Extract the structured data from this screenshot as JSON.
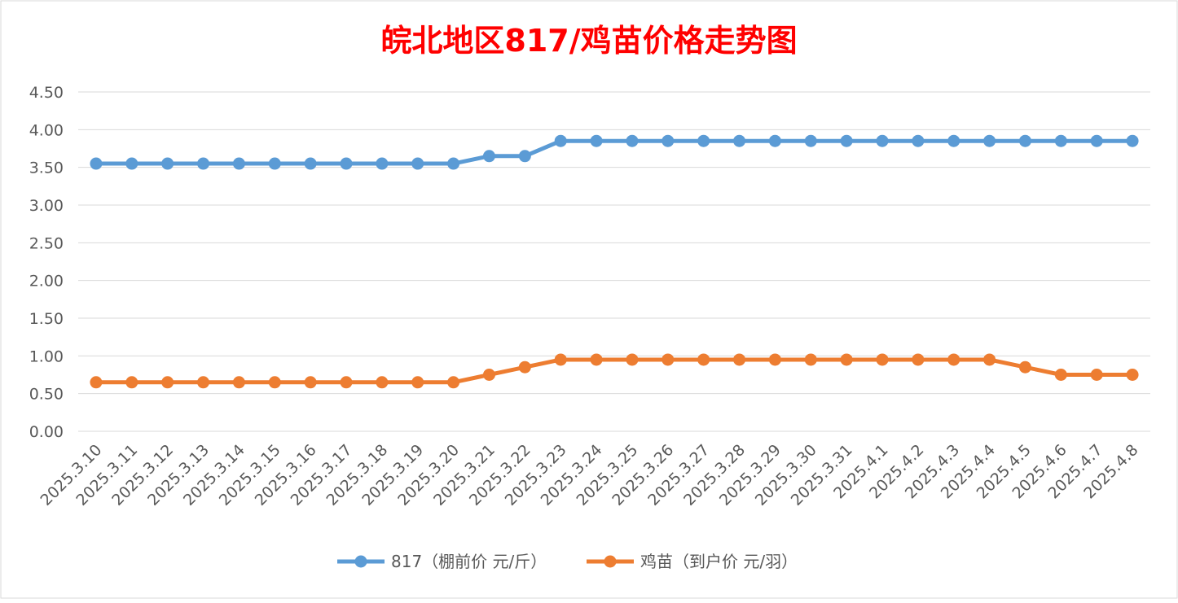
{
  "chart_data": {
    "type": "line",
    "title": "皖北地区817/鸡苗价格走势图",
    "title_color": "#ff0000",
    "categories": [
      "2025.3.10",
      "2025.3.11",
      "2025.3.12",
      "2025.3.13",
      "2025.3.14",
      "2025.3.15",
      "2025.3.16",
      "2025.3.17",
      "2025.3.18",
      "2025.3.19",
      "2025.3.20",
      "2025.3.21",
      "2025.3.22",
      "2025.3.23",
      "2025.3.24",
      "2025.3.25",
      "2025.3.26",
      "2025.3.27",
      "2025.3.28",
      "2025.3.29",
      "2025.3.30",
      "2025.3.31",
      "2025.4.1",
      "2025.4.2",
      "2025.4.3",
      "2025.4.4",
      "2025.4.5",
      "2025.4.6",
      "2025.4.7",
      "2025.4.8"
    ],
    "series": [
      {
        "name": "817（棚前价 元/斤）",
        "color": "#5b9bd5",
        "values": [
          3.55,
          3.55,
          3.55,
          3.55,
          3.55,
          3.55,
          3.55,
          3.55,
          3.55,
          3.55,
          3.55,
          3.65,
          3.65,
          3.85,
          3.85,
          3.85,
          3.85,
          3.85,
          3.85,
          3.85,
          3.85,
          3.85,
          3.85,
          3.85,
          3.85,
          3.85,
          3.85,
          3.85,
          3.85,
          3.85
        ]
      },
      {
        "name": "鸡苗（到户价 元/羽）",
        "color": "#ed7d31",
        "values": [
          0.65,
          0.65,
          0.65,
          0.65,
          0.65,
          0.65,
          0.65,
          0.65,
          0.65,
          0.65,
          0.65,
          0.75,
          0.85,
          0.95,
          0.95,
          0.95,
          0.95,
          0.95,
          0.95,
          0.95,
          0.95,
          0.95,
          0.95,
          0.95,
          0.95,
          0.95,
          0.85,
          0.75,
          0.75,
          0.75
        ]
      }
    ],
    "yticks": [
      "0.00",
      "0.50",
      "1.00",
      "1.50",
      "2.00",
      "2.50",
      "3.00",
      "3.50",
      "4.00",
      "4.50"
    ],
    "ylim": [
      0,
      4.5
    ],
    "xlabel": "",
    "ylabel": "",
    "grid": true,
    "legend_position": "bottom"
  }
}
